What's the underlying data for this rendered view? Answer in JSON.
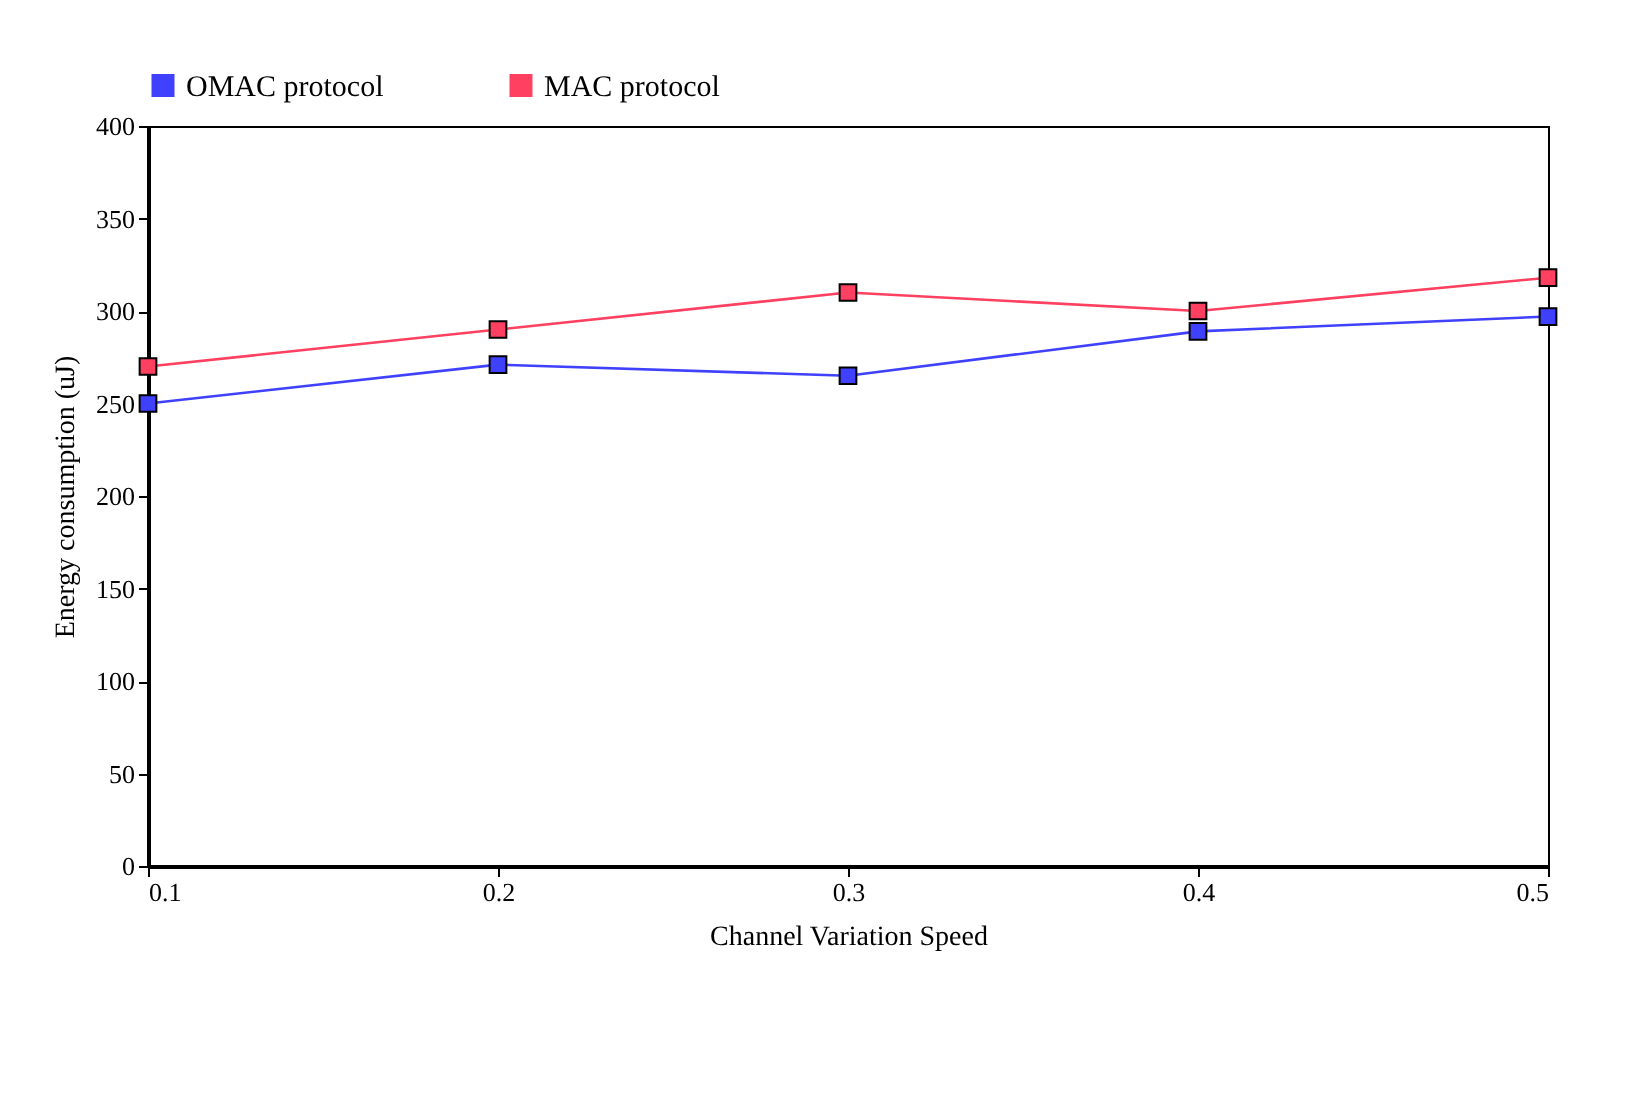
{
  "chart_data": {
    "type": "line",
    "xlabel": "Channel Variation Speed",
    "ylabel": "Energy consumption (uJ)",
    "x": [
      0.1,
      0.2,
      0.3,
      0.4,
      0.5
    ],
    "xlim": [
      0.1,
      0.5
    ],
    "xticks": [
      0.1,
      0.2,
      0.3,
      0.4,
      0.5
    ],
    "ylim": [
      0,
      400
    ],
    "yticks": [
      0,
      50,
      100,
      150,
      200,
      250,
      300,
      350,
      400
    ],
    "grid": false,
    "legend": "top left",
    "marker": "square",
    "line_style": "solid",
    "series": [
      {
        "name": "OMAC protocol",
        "color": "#4040ff",
        "values": [
          250,
          271,
          265,
          289,
          297
        ]
      },
      {
        "name": "MAC protocol",
        "color": "#ff4060",
        "values": [
          270,
          290,
          310,
          300,
          318
        ]
      }
    ]
  }
}
